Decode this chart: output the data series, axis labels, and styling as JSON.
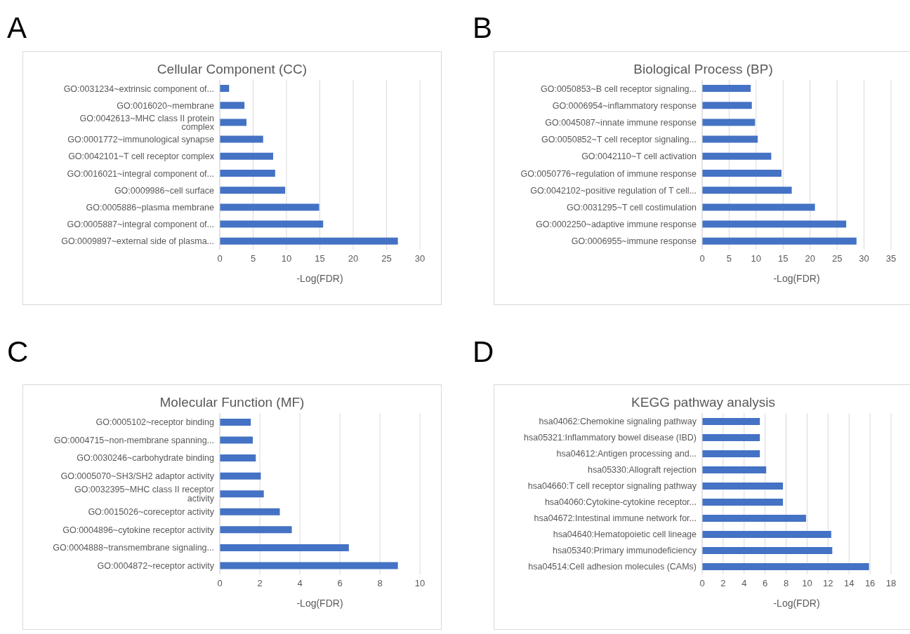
{
  "chart_data": [
    {
      "type": "bar",
      "orientation": "horizontal",
      "title": "Cellular Component (CC)",
      "xlabel": "-Log(FDR)",
      "annotations": [
        "A"
      ],
      "color": "#4472c4",
      "grid": "x",
      "xlim": [
        0,
        30
      ],
      "xticks": [
        0,
        5,
        10,
        15,
        20,
        25,
        30
      ],
      "categories": [
        "GO:0031234~extrinsic component of...",
        "GO:0016020~membrane",
        "GO:0042613~MHC class II protein complex",
        "GO:0001772~immunological synapse",
        "GO:0042101~T cell receptor complex",
        "GO:0016021~integral component of...",
        "GO:0009986~cell surface",
        "GO:0005886~plasma membrane",
        "GO:0005887~integral component of...",
        "GO:0009897~external side of plasma..."
      ],
      "values": [
        1.4,
        3.7,
        4.0,
        6.5,
        8.0,
        8.3,
        9.8,
        14.9,
        15.5,
        26.7
      ]
    },
    {
      "type": "bar",
      "orientation": "horizontal",
      "title": "Biological Process (BP)",
      "xlabel": "-Log(FDR)",
      "annotations": [
        "B"
      ],
      "color": "#4472c4",
      "grid": "x",
      "xlim": [
        0,
        35
      ],
      "xticks": [
        0,
        5,
        10,
        15,
        20,
        25,
        30,
        35
      ],
      "categories": [
        "GO:0050853~B cell receptor signaling...",
        "GO:0006954~inflammatory response",
        "GO:0045087~innate immune response",
        "GO:0050852~T cell receptor signaling...",
        "GO:0042110~T cell activation",
        "GO:0050776~regulation of immune response",
        "GO:0042102~positive regulation of T cell...",
        "GO:0031295~T cell costimulation",
        "GO:0002250~adaptive immune response",
        "GO:0006955~immune response"
      ],
      "values": [
        9.0,
        9.2,
        9.8,
        10.3,
        12.8,
        14.7,
        16.6,
        20.9,
        26.7,
        28.6
      ]
    },
    {
      "type": "bar",
      "orientation": "horizontal",
      "title": "Molecular Function (MF)",
      "xlabel": "-Log(FDR)",
      "annotations": [
        "C"
      ],
      "color": "#4472c4",
      "grid": "x",
      "xlim": [
        0,
        10
      ],
      "xticks": [
        0,
        2,
        4,
        6,
        8,
        10
      ],
      "categories": [
        "GO:0005102~receptor binding",
        "GO:0004715~non-membrane spanning...",
        "GO:0030246~carbohydrate binding",
        "GO:0005070~SH3/SH2 adaptor activity",
        "GO:0032395~MHC class II receptor activity",
        "GO:0015026~coreceptor activity",
        "GO:0004896~cytokine receptor activity",
        "GO:0004888~transmembrane signaling...",
        "GO:0004872~receptor activity"
      ],
      "values": [
        1.55,
        1.65,
        1.8,
        2.05,
        2.2,
        3.0,
        3.6,
        6.45,
        8.9
      ]
    },
    {
      "type": "bar",
      "orientation": "horizontal",
      "title": "KEGG pathway analysis",
      "xlabel": "-Log(FDR)",
      "annotations": [
        "D"
      ],
      "color": "#4472c4",
      "grid": "x",
      "xlim": [
        0,
        18
      ],
      "xticks": [
        0,
        2,
        4,
        6,
        8,
        10,
        12,
        14,
        16,
        18
      ],
      "categories": [
        "hsa04062:Chemokine signaling pathway",
        "hsa05321:Inflammatory bowel disease (IBD)",
        "hsa04612:Antigen processing and...",
        "hsa05330:Allograft rejection",
        "hsa04660:T cell receptor signaling pathway",
        "hsa04060:Cytokine-cytokine receptor...",
        "hsa04672:Intestinal immune network for...",
        "hsa04640:Hematopoietic cell lineage",
        "hsa05340:Primary immunodeficiency",
        "hsa04514:Cell adhesion molecules (CAMs)"
      ],
      "values": [
        5.5,
        5.5,
        5.5,
        6.1,
        7.7,
        7.7,
        9.9,
        12.3,
        12.4,
        15.9
      ]
    }
  ]
}
